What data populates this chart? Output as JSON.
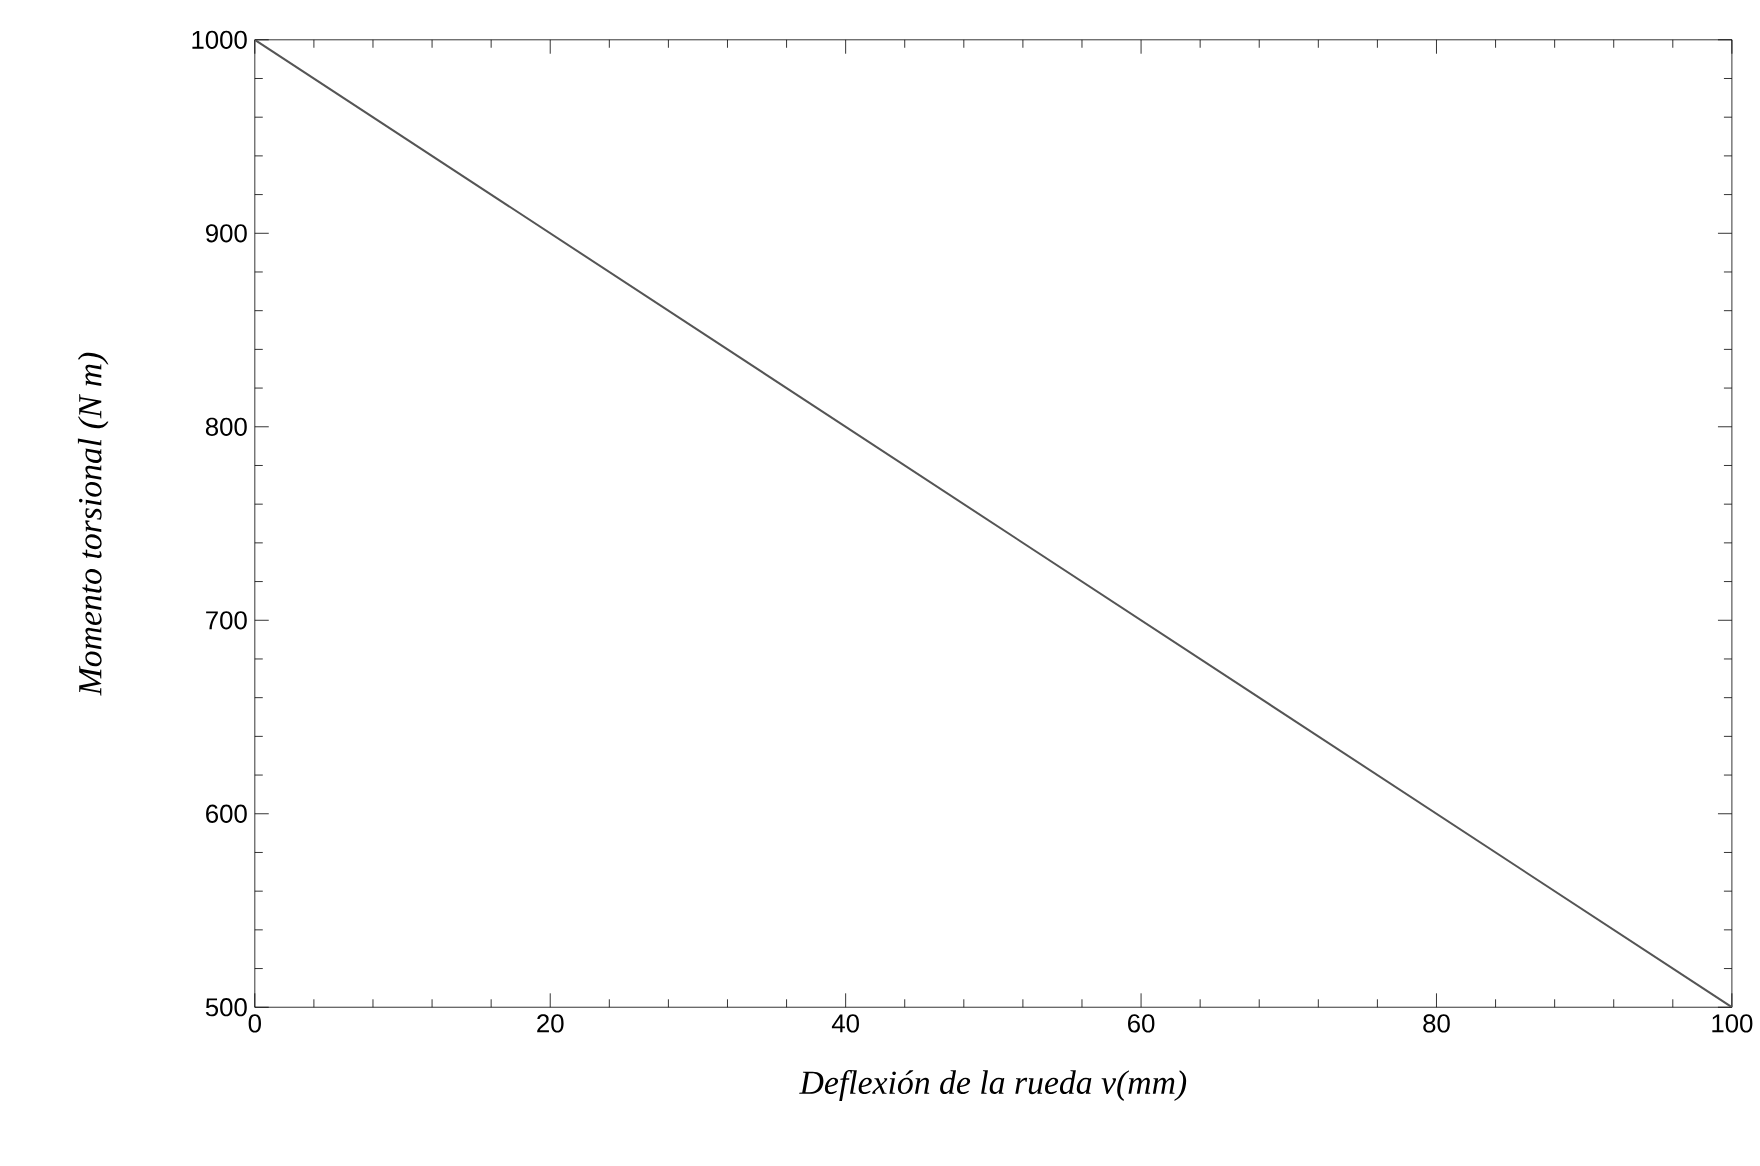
{
  "chart_data": {
    "type": "line",
    "xlabel": "Deflexión de la rueda  v(mm)",
    "ylabel": "Momento torsional (N m)",
    "x": [
      0,
      100
    ],
    "series": [
      {
        "color": "#555555",
        "values": [
          1000,
          500
        ]
      }
    ],
    "xlim": [
      0,
      100
    ],
    "ylim": [
      500,
      1000
    ],
    "xticks": [
      0,
      20,
      40,
      60,
      80,
      100
    ],
    "yticks": [
      500,
      600,
      700,
      800,
      900,
      1000
    ],
    "grid": false,
    "marker": "none",
    "line_style": "solid"
  }
}
